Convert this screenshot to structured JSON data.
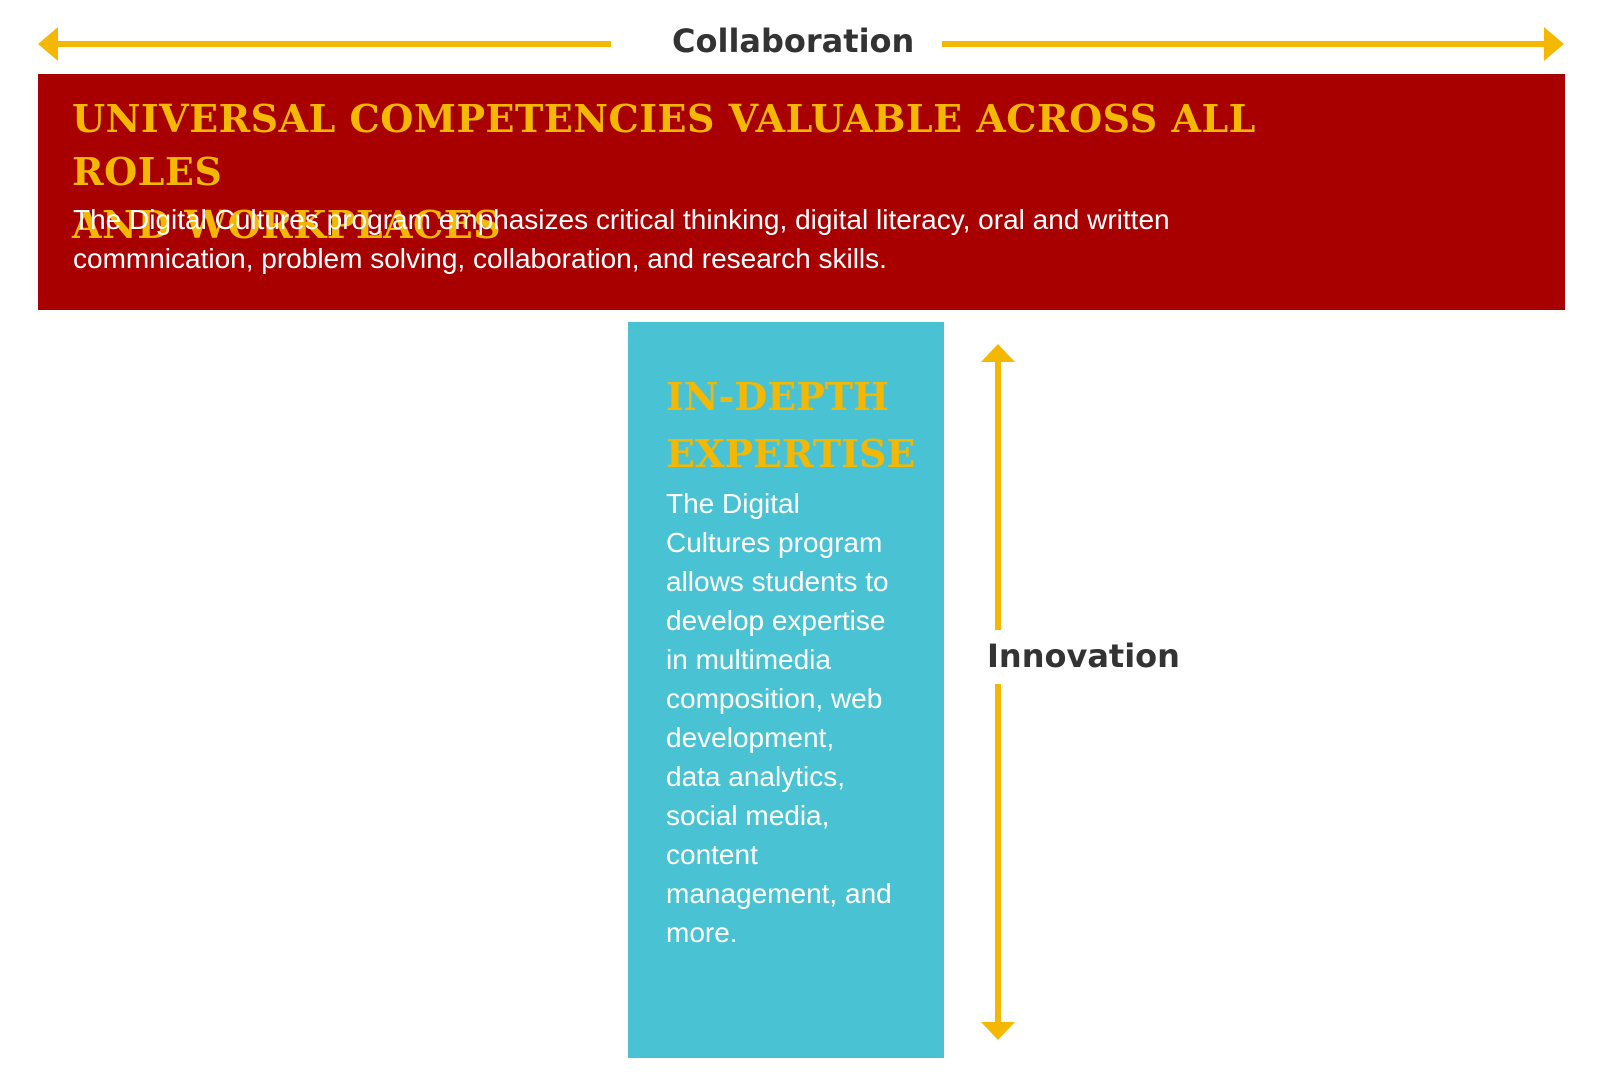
{
  "colors": {
    "arrow": "#F5B800",
    "banner_bg": "#A80000",
    "heading": "#F5B800",
    "expertise_bg": "#49C3D3",
    "label_text": "#333333",
    "body_text": "#FFFFFF"
  },
  "horizontal_axis": {
    "label": "Collaboration",
    "direction": "left-right",
    "icons": [
      "arrowhead-left",
      "arrowhead-right"
    ]
  },
  "vertical_axis": {
    "label": "Innovation",
    "direction": "up-down",
    "icons": [
      "arrowhead-up",
      "arrowhead-down"
    ]
  },
  "universal": {
    "title_line1": "UNIVERSAL COMPETENCIES VALUABLE ACROSS ALL ROLES",
    "title_line2": "AND WORKPLACES",
    "body_line1": "The Digital Cultures program emphasizes critical thinking, digital literacy, oral and written",
    "body_line2": "commnication, problem solving, collaboration, and research skills."
  },
  "expertise": {
    "title_line1": "IN-DEPTH",
    "title_line2": "EXPERTISE",
    "body_lines": [
      "The Digital",
      "Cultures program",
      "allows students to",
      "develop expertise",
      "in multimedia",
      "composition, web",
      "development,",
      "data analytics,",
      "social media,",
      "content",
      "management, and",
      "more."
    ]
  }
}
